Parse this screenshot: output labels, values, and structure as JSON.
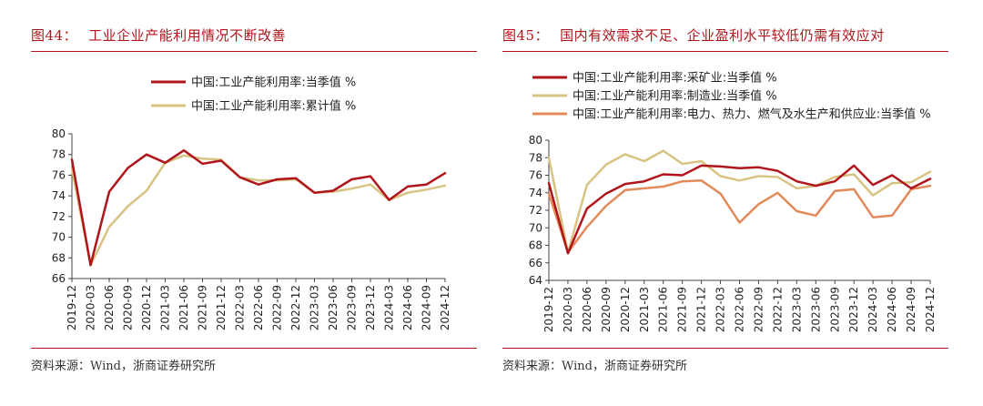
{
  "left_figure": {
    "label": "图44：",
    "title": "工业企业产能利用情况不断改善",
    "source": "资料来源：Wind，浙商证券研究所"
  },
  "right_figure": {
    "label": "图45：",
    "title": "国内有效需求不足、企业盈利水平较低仍需有效应对",
    "source": "资料来源：Wind，浙商证券研究所"
  },
  "chart_data": [
    {
      "type": "line",
      "title": "",
      "xlabel": "",
      "ylabel": "",
      "categories": [
        "2019-12",
        "2020-03",
        "2020-06",
        "2020-09",
        "2020-12",
        "2021-03",
        "2021-06",
        "2021-09",
        "2021-12",
        "2022-03",
        "2022-06",
        "2022-09",
        "2022-12",
        "2023-03",
        "2023-06",
        "2023-09",
        "2023-12",
        "2024-03",
        "2024-06",
        "2024-09",
        "2024-12"
      ],
      "ylim": [
        66,
        80
      ],
      "yticks": [
        "66",
        "68",
        "70",
        "72",
        "74",
        "76",
        "78",
        "80"
      ],
      "grid": false,
      "legend_position": "top",
      "series": [
        {
          "name": "中国:工业产能利用率:当季值 %",
          "color": "#b0151c",
          "values": [
            77.5,
            67.3,
            74.4,
            76.7,
            78.0,
            77.2,
            78.4,
            77.1,
            77.4,
            75.8,
            75.1,
            75.6,
            75.7,
            74.3,
            74.5,
            75.6,
            75.9,
            73.6,
            74.9,
            75.1,
            76.2
          ]
        },
        {
          "name": "中国:工业产能利用率:累计值 %",
          "color": "#d8c482",
          "values": [
            76.6,
            67.3,
            71.0,
            73.0,
            74.5,
            77.2,
            77.9,
            77.6,
            77.5,
            75.8,
            75.5,
            75.5,
            75.6,
            74.3,
            74.4,
            74.7,
            75.1,
            73.6,
            74.3,
            74.6,
            75.0
          ]
        }
      ]
    },
    {
      "type": "line",
      "title": "",
      "xlabel": "",
      "ylabel": "",
      "categories": [
        "2019-12",
        "2020-03",
        "2020-06",
        "2020-09",
        "2020-12",
        "2021-03",
        "2021-06",
        "2021-09",
        "2021-12",
        "2022-03",
        "2022-06",
        "2022-09",
        "2022-12",
        "2023-03",
        "2023-06",
        "2023-09",
        "2023-12",
        "2024-03",
        "2024-06",
        "2024-09",
        "2024-12"
      ],
      "ylim": [
        64,
        80
      ],
      "yticks": [
        "64",
        "66",
        "68",
        "70",
        "72",
        "74",
        "76",
        "78",
        "80"
      ],
      "grid": false,
      "legend_position": "top",
      "series": [
        {
          "name": "中国:工业产能利用率:采矿业:当季值 %",
          "color": "#b0151c",
          "values": [
            75.1,
            67.1,
            72.2,
            73.9,
            75.0,
            75.3,
            76.1,
            76.0,
            77.1,
            77.0,
            76.8,
            76.9,
            76.5,
            75.3,
            74.8,
            75.3,
            77.1,
            74.9,
            76.0,
            74.5,
            75.6
          ]
        },
        {
          "name": "中国:工业产能利用率:制造业:当季值 %",
          "color": "#d8c482",
          "values": [
            78.0,
            67.2,
            74.9,
            77.2,
            78.4,
            77.6,
            78.8,
            77.3,
            77.6,
            75.9,
            75.4,
            75.9,
            75.8,
            74.5,
            74.8,
            75.8,
            76.1,
            73.7,
            75.1,
            75.2,
            76.4
          ]
        },
        {
          "name": "中国:工业产能利用率:电力、热力、燃气及水生产和供应业:当季值 %",
          "color": "#e38a5a",
          "values": [
            73.9,
            67.2,
            70.1,
            72.5,
            74.3,
            74.5,
            74.7,
            75.3,
            75.4,
            73.9,
            70.6,
            72.7,
            74.0,
            71.9,
            71.4,
            74.2,
            74.4,
            71.2,
            71.4,
            74.4,
            74.8
          ]
        }
      ]
    }
  ]
}
